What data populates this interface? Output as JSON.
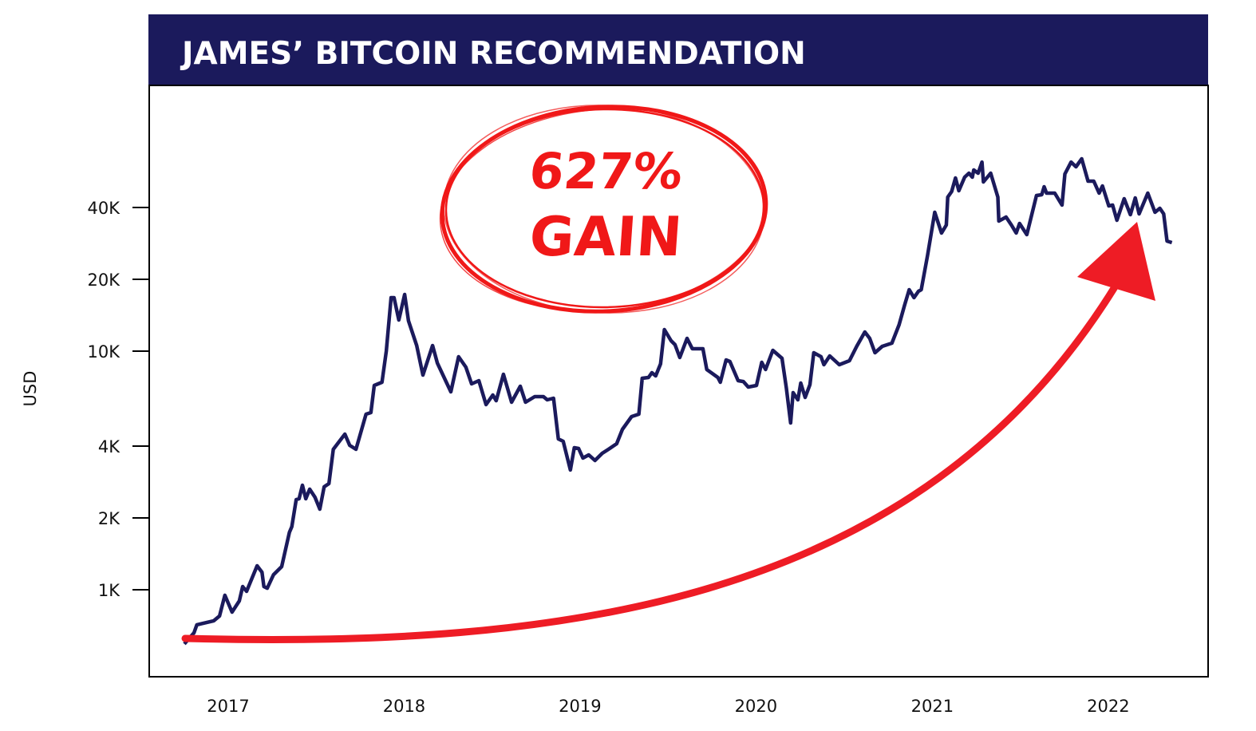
{
  "title": "JAMES’ BITCOIN RECOMMENDATION",
  "annotation": {
    "line1": "627%",
    "line2": "GAIN"
  },
  "colors": {
    "title_bar": "#1b1a5c",
    "series_line": "#1b1a5c",
    "accent_red": "#ee1c25",
    "axis": "#000000"
  },
  "chart_data": {
    "type": "line",
    "title": "JAMES’ BITCOIN RECOMMENDATION",
    "xlabel": "",
    "ylabel": "USD",
    "y_scale": "log",
    "ylim": [
      450,
      90000
    ],
    "xlim": [
      "2016-09-15",
      "2022-08-01"
    ],
    "grid": false,
    "y_ticks": [
      {
        "value": 1000,
        "label": "1K"
      },
      {
        "value": 2000,
        "label": "2K"
      },
      {
        "value": 4000,
        "label": "4K"
      },
      {
        "value": 10000,
        "label": "10K"
      },
      {
        "value": 20000,
        "label": "20K"
      },
      {
        "value": 40000,
        "label": "40K"
      }
    ],
    "x_ticks": [
      {
        "value": "2017-01-01",
        "label": "2017"
      },
      {
        "value": "2018-01-01",
        "label": "2018"
      },
      {
        "value": "2019-01-01",
        "label": "2019"
      },
      {
        "value": "2020-01-01",
        "label": "2020"
      },
      {
        "value": "2021-01-01",
        "label": "2021"
      },
      {
        "value": "2022-01-01",
        "label": "2022"
      }
    ],
    "annotation_text": "627% GAIN",
    "annotation_arrow": {
      "from": [
        "2016-10-02",
        593
      ],
      "to": [
        "2022-03-10",
        33000
      ]
    },
    "series": [
      {
        "color": "#1b1a5c",
        "points": [
          [
            "2016-10-02",
            593
          ],
          [
            "2016-10-22",
            660
          ],
          [
            "2016-10-28",
            713
          ],
          [
            "2016-12-02",
            741
          ],
          [
            "2016-12-14",
            776
          ],
          [
            "2016-12-25",
            948
          ],
          [
            "2017-01-09",
            806
          ],
          [
            "2017-01-24",
            898
          ],
          [
            "2017-01-31",
            1031
          ],
          [
            "2017-02-08",
            985
          ],
          [
            "2017-03-02",
            1260
          ],
          [
            "2017-03-12",
            1185
          ],
          [
            "2017-03-16",
            1031
          ],
          [
            "2017-03-23",
            1015
          ],
          [
            "2017-04-05",
            1157
          ],
          [
            "2017-04-22",
            1250
          ],
          [
            "2017-05-08",
            1741
          ],
          [
            "2017-05-13",
            1838
          ],
          [
            "2017-05-22",
            2387
          ],
          [
            "2017-05-28",
            2406
          ],
          [
            "2017-06-04",
            2742
          ],
          [
            "2017-06-11",
            2406
          ],
          [
            "2017-06-19",
            2639
          ],
          [
            "2017-06-30",
            2443
          ],
          [
            "2017-07-10",
            2177
          ],
          [
            "2017-07-19",
            2700
          ],
          [
            "2017-07-29",
            2784
          ],
          [
            "2017-08-07",
            3879
          ],
          [
            "2017-08-31",
            4489
          ],
          [
            "2017-09-10",
            4031
          ],
          [
            "2017-09-23",
            3879
          ],
          [
            "2017-10-14",
            5442
          ],
          [
            "2017-10-24",
            5527
          ],
          [
            "2017-10-31",
            7181
          ],
          [
            "2017-11-16",
            7407
          ],
          [
            "2017-11-25",
            10000
          ],
          [
            "2017-12-05",
            16750
          ],
          [
            "2017-12-11",
            16750
          ],
          [
            "2017-12-21",
            13500
          ],
          [
            "2018-01-02",
            17280
          ],
          [
            "2018-01-10",
            13400
          ],
          [
            "2018-01-27",
            10550
          ],
          [
            "2018-02-09",
            7940
          ],
          [
            "2018-03-01",
            10550
          ],
          [
            "2018-03-11",
            8910
          ],
          [
            "2018-04-08",
            6750
          ],
          [
            "2018-04-24",
            9475
          ],
          [
            "2018-05-09",
            8575
          ],
          [
            "2018-05-21",
            7294
          ],
          [
            "2018-06-05",
            7520
          ],
          [
            "2018-06-20",
            5970
          ],
          [
            "2018-07-04",
            6546
          ],
          [
            "2018-07-11",
            6200
          ],
          [
            "2018-07-26",
            8000
          ],
          [
            "2018-08-12",
            6110
          ],
          [
            "2018-08-30",
            7126
          ],
          [
            "2018-09-10",
            6110
          ],
          [
            "2018-09-29",
            6447
          ],
          [
            "2018-10-17",
            6447
          ],
          [
            "2018-10-25",
            6252
          ],
          [
            "2018-11-07",
            6348
          ],
          [
            "2018-11-17",
            4287
          ],
          [
            "2018-11-27",
            4190
          ],
          [
            "2018-12-12",
            3176
          ],
          [
            "2018-12-20",
            3938
          ],
          [
            "2018-12-29",
            3908
          ],
          [
            "2019-01-07",
            3563
          ],
          [
            "2019-01-19",
            3675
          ],
          [
            "2019-02-01",
            3482
          ],
          [
            "2019-02-16",
            3732
          ],
          [
            "2019-03-01",
            3879
          ],
          [
            "2019-03-18",
            4093
          ],
          [
            "2019-03-30",
            4700
          ],
          [
            "2019-04-18",
            5318
          ],
          [
            "2019-05-03",
            5442
          ],
          [
            "2019-05-10",
            7696
          ],
          [
            "2019-05-23",
            7757
          ],
          [
            "2019-05-30",
            8124
          ],
          [
            "2019-06-07",
            7878
          ],
          [
            "2019-06-17",
            8843
          ],
          [
            "2019-06-25",
            12310
          ],
          [
            "2019-07-09",
            11050
          ],
          [
            "2019-07-17",
            10640
          ],
          [
            "2019-07-27",
            9400
          ],
          [
            "2019-08-11",
            11310
          ],
          [
            "2019-08-22",
            10230
          ],
          [
            "2019-09-13",
            10230
          ],
          [
            "2019-09-21",
            8380
          ],
          [
            "2019-10-14",
            7757
          ],
          [
            "2019-10-19",
            7407
          ],
          [
            "2019-10-31",
            9190
          ],
          [
            "2019-11-08",
            9050
          ],
          [
            "2019-11-25",
            7520
          ],
          [
            "2019-12-06",
            7460
          ],
          [
            "2019-12-16",
            7070
          ],
          [
            "2020-01-02",
            7180
          ],
          [
            "2020-01-13",
            8980
          ],
          [
            "2020-01-21",
            8380
          ],
          [
            "2020-02-05",
            10080
          ],
          [
            "2020-02-24",
            9330
          ],
          [
            "2020-03-04",
            7020
          ],
          [
            "2020-03-13",
            5000
          ],
          [
            "2020-03-18",
            6700
          ],
          [
            "2020-03-28",
            6250
          ],
          [
            "2020-04-03",
            7350
          ],
          [
            "2020-04-12",
            6400
          ],
          [
            "2020-04-22",
            7235
          ],
          [
            "2020-04-30",
            9850
          ],
          [
            "2020-05-15",
            9475
          ],
          [
            "2020-05-21",
            8770
          ],
          [
            "2020-06-02",
            9550
          ],
          [
            "2020-06-22",
            8770
          ],
          [
            "2020-07-13",
            9120
          ],
          [
            "2020-07-28",
            10470
          ],
          [
            "2020-08-14",
            12030
          ],
          [
            "2020-08-24",
            11310
          ],
          [
            "2020-09-04",
            9850
          ],
          [
            "2020-09-19",
            10470
          ],
          [
            "2020-10-09",
            10800
          ],
          [
            "2020-10-24",
            12890
          ],
          [
            "2020-11-04",
            15500
          ],
          [
            "2020-11-14",
            18090
          ],
          [
            "2020-11-24",
            16750
          ],
          [
            "2020-12-03",
            17810
          ],
          [
            "2020-12-09",
            18090
          ],
          [
            "2020-12-22",
            25200
          ],
          [
            "2021-01-06",
            38190
          ],
          [
            "2021-01-20",
            31260
          ],
          [
            "2021-01-30",
            33770
          ],
          [
            "2021-02-02",
            44200
          ],
          [
            "2021-02-10",
            46670
          ],
          [
            "2021-02-18",
            53200
          ],
          [
            "2021-02-25",
            47000
          ],
          [
            "2021-03-09",
            53600
          ],
          [
            "2021-03-18",
            55700
          ],
          [
            "2021-03-25",
            53600
          ],
          [
            "2021-03-28",
            57430
          ],
          [
            "2021-04-06",
            55700
          ],
          [
            "2021-04-14",
            62000
          ],
          [
            "2021-04-17",
            51170
          ],
          [
            "2021-05-02",
            55700
          ],
          [
            "2021-05-17",
            44200
          ],
          [
            "2021-05-19",
            35100
          ],
          [
            "2021-06-03",
            36470
          ],
          [
            "2021-06-14",
            33770
          ],
          [
            "2021-06-24",
            31260
          ],
          [
            "2021-07-01",
            34290
          ],
          [
            "2021-07-16",
            30780
          ],
          [
            "2021-08-05",
            44900
          ],
          [
            "2021-08-16",
            45240
          ],
          [
            "2021-08-21",
            48870
          ],
          [
            "2021-08-26",
            45950
          ],
          [
            "2021-09-12",
            45950
          ],
          [
            "2021-09-27",
            40930
          ],
          [
            "2021-10-03",
            55270
          ],
          [
            "2021-10-16",
            62000
          ],
          [
            "2021-10-26",
            59240
          ],
          [
            "2021-11-07",
            63970
          ],
          [
            "2021-11-20",
            51570
          ],
          [
            "2021-12-02",
            51570
          ],
          [
            "2021-12-13",
            45950
          ],
          [
            "2021-12-20",
            49250
          ],
          [
            "2022-01-02",
            40620
          ],
          [
            "2022-01-10",
            40930
          ],
          [
            "2022-01-19",
            35370
          ],
          [
            "2022-02-03",
            43540
          ],
          [
            "2022-02-16",
            37320
          ],
          [
            "2022-02-26",
            43870
          ],
          [
            "2022-03-06",
            37610
          ],
          [
            "2022-03-24",
            45950
          ],
          [
            "2022-04-08",
            38190
          ],
          [
            "2022-04-18",
            39690
          ],
          [
            "2022-04-26",
            37610
          ],
          [
            "2022-05-03",
            28930
          ],
          [
            "2022-05-13",
            28490
          ]
        ]
      }
    ]
  }
}
